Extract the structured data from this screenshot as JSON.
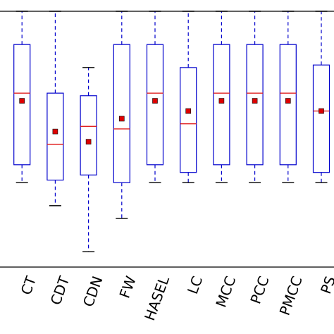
{
  "chart_data": {
    "type": "boxplot",
    "categories": [
      "",
      "CT",
      "CDT",
      "CDN",
      "FW",
      "HASEL",
      "LC",
      "MCC",
      "PCC",
      "PMCC",
      "PS"
    ],
    "ylim": [
      0,
      1
    ],
    "grid": false,
    "legend": "none",
    "boxes": [
      {
        "category": "",
        "whisker_low": 0.4,
        "q1": 0.4,
        "median": 0.68,
        "q3": 0.87,
        "whisker_high": 1.0,
        "mean": null
      },
      {
        "category": "CT",
        "whisker_low": 0.33,
        "q1": 0.4,
        "median": 0.68,
        "q3": 0.87,
        "whisker_high": 1.0,
        "mean": 0.65
      },
      {
        "category": "CDT",
        "whisker_low": 0.24,
        "q1": 0.34,
        "median": 0.48,
        "q3": 0.68,
        "whisker_high": 1.0,
        "mean": 0.53
      },
      {
        "category": "CDN",
        "whisker_low": 0.06,
        "q1": 0.36,
        "median": 0.55,
        "q3": 0.67,
        "whisker_high": 0.78,
        "mean": 0.49
      },
      {
        "category": "FW",
        "whisker_low": 0.19,
        "q1": 0.33,
        "median": 0.54,
        "q3": 0.87,
        "whisker_high": 1.0,
        "mean": 0.58
      },
      {
        "category": "HASEL",
        "whisker_low": 0.33,
        "q1": 0.4,
        "median": 0.68,
        "q3": 0.87,
        "whisker_high": 1.0,
        "mean": 0.65
      },
      {
        "category": "LC",
        "whisker_low": 0.33,
        "q1": 0.37,
        "median": 0.56,
        "q3": 0.78,
        "whisker_high": 1.0,
        "mean": 0.61
      },
      {
        "category": "MCC",
        "whisker_low": 0.33,
        "q1": 0.4,
        "median": 0.68,
        "q3": 0.87,
        "whisker_high": 1.0,
        "mean": 0.65
      },
      {
        "category": "PCC",
        "whisker_low": 0.33,
        "q1": 0.4,
        "median": 0.68,
        "q3": 0.87,
        "whisker_high": 1.0,
        "mean": 0.65
      },
      {
        "category": "PMCC",
        "whisker_low": 0.33,
        "q1": 0.4,
        "median": 0.68,
        "q3": 0.87,
        "whisker_high": 1.0,
        "mean": 0.65
      },
      {
        "category": "PS",
        "whisker_low": 0.33,
        "q1": 0.37,
        "median": 0.61,
        "q3": 0.79,
        "whisker_high": 1.0,
        "mean": 0.61
      }
    ],
    "colors": {
      "box": "#0000cc",
      "median": "#e02020",
      "mean_fill": "#dd0000",
      "mean_edge": "#000000",
      "whisker": "#0000cc",
      "cap": "#000000",
      "axis": "#000000"
    }
  }
}
